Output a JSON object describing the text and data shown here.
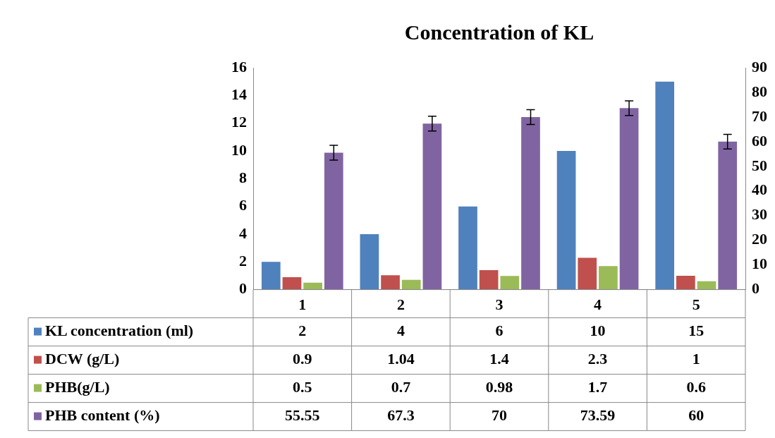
{
  "chart_data": {
    "type": "bar",
    "title": "Concentration of KL",
    "categories": [
      "1",
      "2",
      "3",
      "4",
      "5"
    ],
    "series": [
      {
        "name": "KL concentration (ml)",
        "color": "#4f81bd",
        "values": [
          2,
          4,
          6,
          10,
          15
        ]
      },
      {
        "name": "DCW (g/L)",
        "color": "#c0504d",
        "values": [
          0.9,
          1.04,
          1.4,
          2.3,
          1
        ]
      },
      {
        "name": "PHB(g/L)",
        "color": "#9bbb59",
        "values": [
          0.5,
          0.7,
          0.98,
          1.7,
          0.6
        ]
      },
      {
        "name": "PHB content (%)",
        "color": "#8064a2",
        "values": [
          55.55,
          67.3,
          70,
          73.59,
          60
        ],
        "axis": "y2",
        "errors": [
          3,
          3,
          3,
          3,
          3
        ]
      }
    ],
    "ylim": [
      0,
      16
    ],
    "yticks": [
      0,
      2,
      4,
      6,
      8,
      10,
      12,
      14,
      16
    ],
    "y2lim": [
      0,
      90
    ],
    "y2ticks": [
      0,
      10,
      20,
      30,
      40,
      50,
      60,
      70,
      80,
      90
    ],
    "data_labels": true,
    "legend": "bottom left"
  }
}
